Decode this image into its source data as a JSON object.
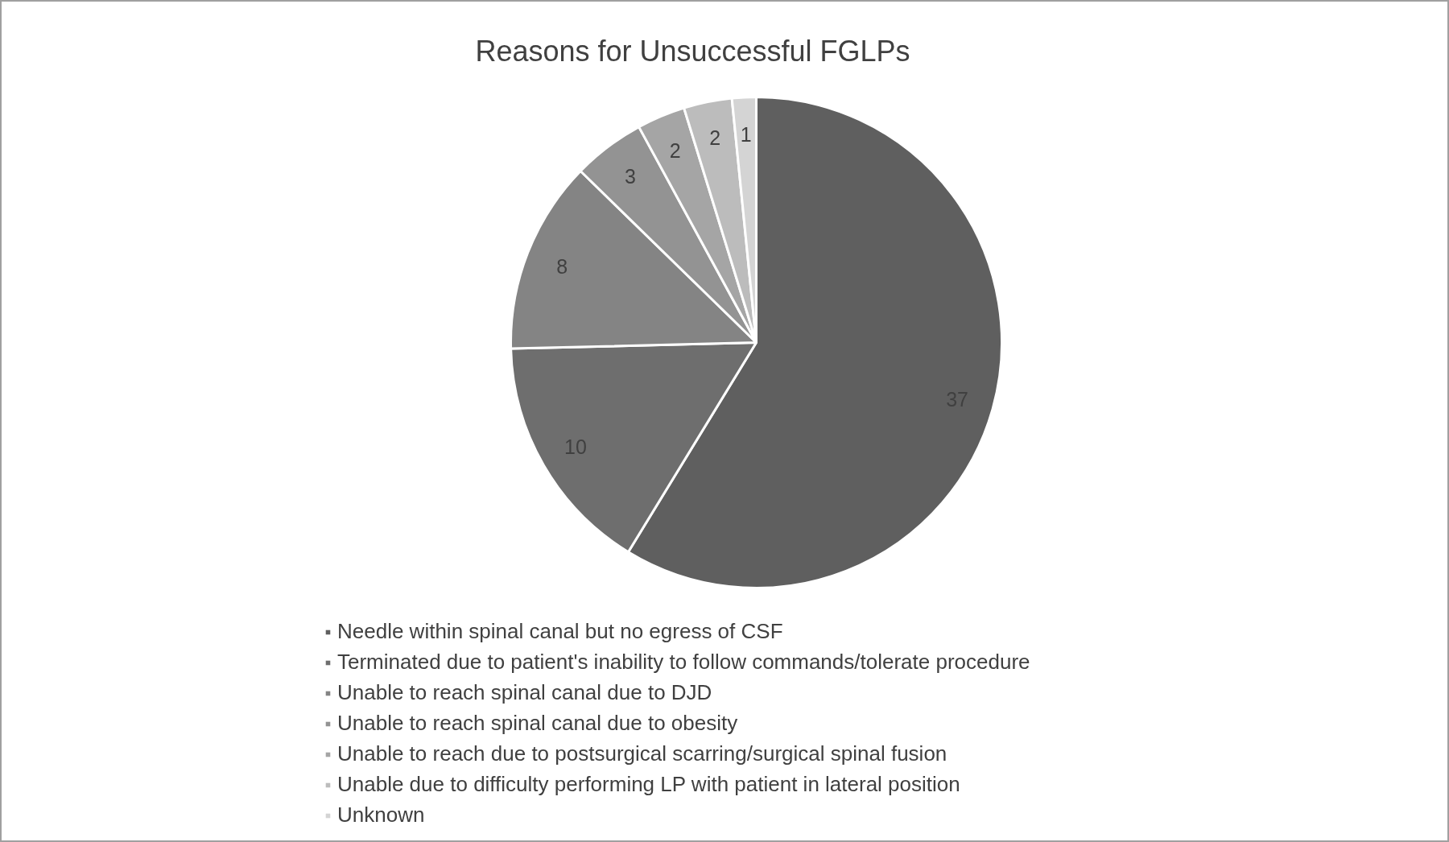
{
  "chart_data": {
    "type": "pie",
    "title": "Reasons for Unsuccessful FGLPs",
    "categories": [
      "Needle within spinal canal but no egress of CSF",
      "Terminated due to patient's inability to follow commands/tolerate procedure",
      "Unable to reach spinal canal due to DJD",
      "Unable to reach spinal canal due to obesity",
      "Unable to reach due to postsurgical scarring/surgical spinal fusion",
      "Unable due to difficulty performing LP with patient in lateral position",
      "Unknown"
    ],
    "values": [
      37,
      10,
      8,
      3,
      2,
      2,
      1
    ],
    "colors": [
      "#5f5f5f",
      "#6e6e6e",
      "#848484",
      "#939393",
      "#a5a5a5",
      "#bcbcbc",
      "#d4d4d4"
    ],
    "data_labels": true,
    "legend": "bottom"
  }
}
